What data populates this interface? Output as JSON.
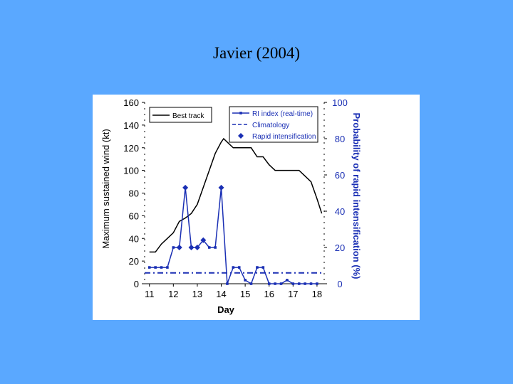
{
  "slide": {
    "title": "Javier (2004)"
  },
  "colors": {
    "background": "#5aa8ff",
    "panel": "#ffffff",
    "best_track": "#000000",
    "ri_index": "#1a2fb4",
    "left_axis": "#000000",
    "right_axis": "#1a2fb4"
  },
  "chart_data": {
    "type": "line",
    "xlabel": "Day",
    "ylabel_left": "Maximum sustained wind (kt)",
    "ylabel_right": "Probability of rapid intensification (%)",
    "xlim": [
      10.8,
      18.3
    ],
    "ylim_left": [
      0,
      160
    ],
    "ylim_right": [
      0,
      100
    ],
    "x_ticks": [
      "11",
      "12",
      "13",
      "14",
      "15",
      "16",
      "17",
      "18"
    ],
    "y_left_ticks": [
      "0",
      "20",
      "40",
      "60",
      "80",
      "100",
      "120",
      "140",
      "160"
    ],
    "y_right_ticks": [
      "0",
      "20",
      "40",
      "60",
      "80",
      "100"
    ],
    "legend_left": {
      "position": "top-left",
      "entries": [
        "Best track"
      ]
    },
    "legend_right": {
      "position": "top-right",
      "entries": [
        "RI index (real-time)",
        "Climatology",
        "Rapid intensification"
      ]
    },
    "series": [
      {
        "name": "Best track",
        "axis": "left",
        "style": "solid",
        "x": [
          11.0,
          11.25,
          11.5,
          11.75,
          12.0,
          12.25,
          12.5,
          12.75,
          13.0,
          13.25,
          13.5,
          13.75,
          14.0,
          14.1,
          14.25,
          14.5,
          14.75,
          15.0,
          15.25,
          15.5,
          15.75,
          16.0,
          16.25,
          16.5,
          16.75,
          17.0,
          17.25,
          17.5,
          17.75,
          18.0,
          18.2
        ],
        "y": [
          28,
          28,
          35,
          40,
          45,
          55,
          58,
          62,
          70,
          85,
          100,
          115,
          125,
          128,
          125,
          120,
          120,
          120,
          120,
          112,
          112,
          105,
          100,
          100,
          100,
          100,
          100,
          95,
          90,
          75,
          62
        ]
      },
      {
        "name": "RI index (real-time)",
        "axis": "right",
        "style": "solid-markers",
        "x": [
          11.0,
          11.25,
          11.5,
          11.75,
          12.0,
          12.25,
          12.5,
          12.75,
          13.0,
          13.25,
          13.5,
          13.75,
          14.0,
          14.25,
          14.5,
          14.75,
          15.0,
          15.25,
          15.5,
          15.75,
          16.0,
          16.25,
          16.5,
          16.75,
          17.0,
          17.25,
          17.5,
          17.75,
          18.0
        ],
        "y": [
          9,
          9,
          9,
          9,
          20,
          20,
          53,
          20,
          20,
          24,
          20,
          20,
          53,
          0,
          9,
          9,
          2,
          0,
          9,
          9,
          0,
          0,
          0,
          2,
          0,
          0,
          0,
          0,
          0
        ]
      },
      {
        "name": "Climatology",
        "axis": "right",
        "style": "dashed",
        "x": [
          10.8,
          18.3
        ],
        "y": [
          6,
          6
        ]
      },
      {
        "name": "Rapid intensification",
        "axis": "right",
        "style": "diamond-markers",
        "x": [
          12.25,
          12.5,
          12.75,
          13.0,
          13.25,
          14.0
        ],
        "y": [
          20,
          53,
          20,
          20,
          24,
          53
        ]
      }
    ]
  }
}
